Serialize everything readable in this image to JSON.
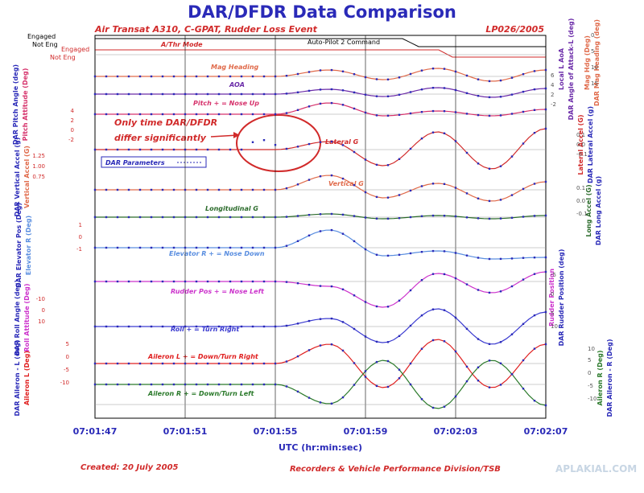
{
  "chart_data": {
    "type": "line",
    "title": "DAR/DFDR Data Comparison",
    "subtitle_left": "Air Transat A310, C-GPAT, Rudder Loss Event",
    "subtitle_right": "LP026/2005",
    "xlabel": "UTC (hr:min:sec)",
    "x_ticks": [
      "07:01:47",
      "07:01:51",
      "07:01:55",
      "07:01:59",
      "07:02:03",
      "07:02:07"
    ],
    "xlim_seconds": [
      0,
      20
    ],
    "discrete": {
      "engaged_label": "Engaged",
      "not_engaged_label": "Not Eng",
      "at_label": "A/Thr Mode",
      "ap_label": "Auto-Pilot 2 Command",
      "left_engaged_label": "Engaged",
      "left_not_engaged_label": "Not Eng"
    },
    "annotation": {
      "line1": "Only time DAR/DFDR",
      "line2": "differ significantly"
    },
    "legend": {
      "label": "DAR Parameters"
    },
    "traces": [
      {
        "name": "Mag Heading",
        "color": "#e06a4a"
      },
      {
        "name": "AOA",
        "color": "#6a2aa8"
      },
      {
        "name": "Pitch + = Nose Up",
        "color": "#d6336c"
      },
      {
        "name": "Lateral G",
        "color": "#d12a2a"
      },
      {
        "name": "Vertical G",
        "color": "#e06a4a"
      },
      {
        "name": "Longitudinal G",
        "color": "#2b6b2b"
      },
      {
        "name": "Elevator R + = Nose Down",
        "color": "#5a8ee0"
      },
      {
        "name": "Rudder Pos + = Nose Left",
        "color": "#cc33cc"
      },
      {
        "name": "Roll + = Turn Right",
        "color": "#3a3ad0"
      },
      {
        "name": "Aileron L + = Down/Turn Right",
        "color": "#e02020"
      },
      {
        "name": "Aileron R + = Down/Turn Left",
        "color": "#2b7a2b"
      }
    ],
    "axes": {
      "left": [
        {
          "label1": "DAR Pitch Angle (deg)",
          "label2": "Pitch Attitude (Deg)",
          "ticks": [
            "4",
            "2",
            "0",
            "-2"
          ]
        },
        {
          "label1": "DAR Vertical Accel (g)",
          "label2": "Vertical Accel (G)",
          "ticks": [
            "1.25",
            "1.00",
            "0.75"
          ]
        },
        {
          "label1": "DAR Elevator Pos (Deg)",
          "label2": "Elevator R (Deg)",
          "ticks": [
            "1",
            "0",
            "-1"
          ]
        },
        {
          "label1": "DAR Roll Angle (deg)",
          "label2": "Roll Attitude (Deg)",
          "ticks": [
            "-10",
            "0",
            "10"
          ]
        },
        {
          "label1": "DAR Aileron - L (deg)",
          "label2": "Aileron L (Deg)",
          "ticks": [
            "5",
            "0",
            "-5",
            "-10"
          ]
        }
      ],
      "right": [
        {
          "label1": "DAR Angle of Attack-L (deg)",
          "label2": "Local L AoA",
          "ticks": [
            "6",
            "4",
            "2",
            "-2"
          ]
        },
        {
          "label1": "DAR Mag Heading (deg)",
          "label2": "Mag Hdg (Deg)",
          "ticks": [
            "0",
            "5",
            "10",
            "15"
          ]
        },
        {
          "label1": "DAR Lateral Accel (g)",
          "label2": "Lateral Accel (G)",
          "ticks": [
            "0.1",
            "0.0",
            "-0.1"
          ]
        },
        {
          "label1": "DAR Long Accel (g)",
          "label2": "Long Accel (G)",
          "ticks": [
            "0.1",
            "0.0",
            "-0.1"
          ]
        },
        {
          "label1": "DAR Rudder Position (deg)",
          "label2": "Rudder Position",
          "ticks": [
            "-5",
            "0",
            "5",
            "10"
          ]
        },
        {
          "label1": "DAR Aileron - R (Deg)",
          "label2": "Aileron R (Deg)",
          "ticks": [
            "10",
            "5",
            "0",
            "-5",
            "-10"
          ]
        }
      ]
    },
    "footer": {
      "created": "Created: 20 July 2005",
      "division": "Recorders & Vehicle Performance Division/TSB",
      "watermark": "APLAKIAL.COM"
    }
  }
}
